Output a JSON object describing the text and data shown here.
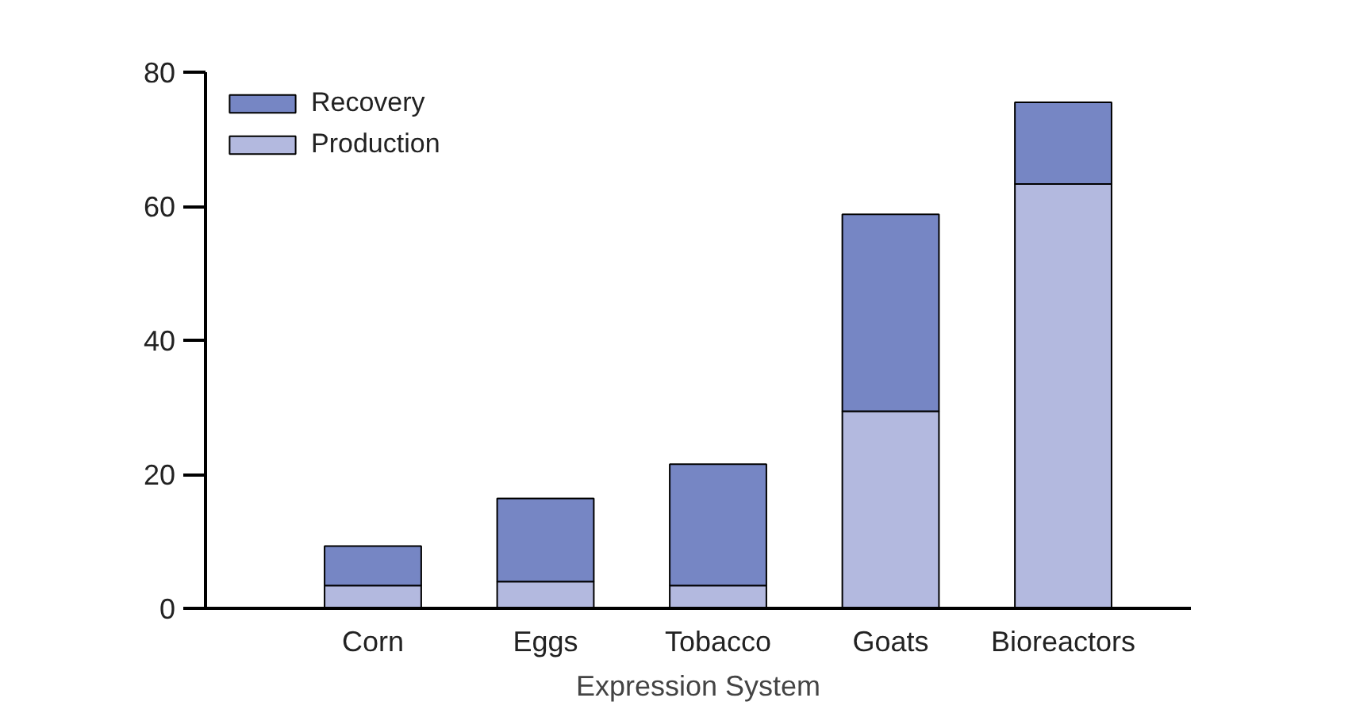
{
  "chart_data": {
    "type": "bar",
    "stacked": true,
    "xlabel": "Expression System",
    "categories": [
      "Corn",
      "Eggs",
      "Tobacco",
      "Goats",
      "Bioreactors"
    ],
    "series": [
      {
        "name": "Production",
        "color": "#b3b9df",
        "values": [
          3.4,
          4.0,
          3.4,
          29.4,
          63.3
        ]
      },
      {
        "name": "Recovery",
        "color": "#7686c4",
        "values": [
          5.9,
          12.4,
          18.1,
          29.4,
          12.2
        ]
      }
    ],
    "ylim": [
      0,
      80
    ],
    "yticks": [
      0,
      20,
      40,
      60,
      80
    ],
    "grid": false,
    "legend": "top left"
  }
}
